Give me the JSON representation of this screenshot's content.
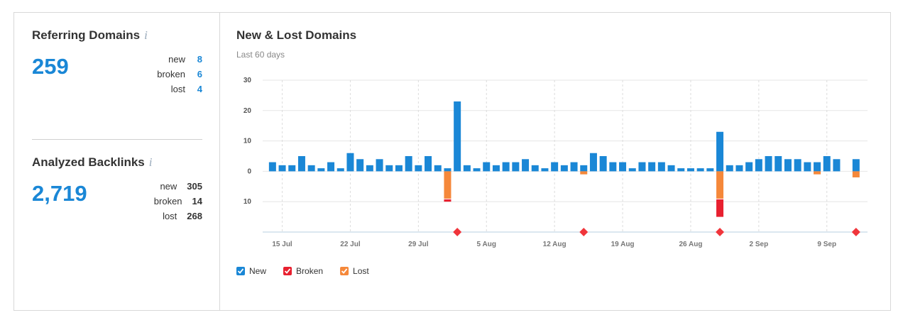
{
  "summary": {
    "referring": {
      "title": "Referring Domains",
      "total": 259,
      "rows": [
        {
          "label": "new",
          "value": 8
        },
        {
          "label": "broken",
          "value": 6
        },
        {
          "label": "lost",
          "value": 4
        }
      ]
    },
    "backlinks": {
      "title": "Analyzed Backlinks",
      "total": "2,719",
      "rows": [
        {
          "label": "new",
          "value": 305
        },
        {
          "label": "broken",
          "value": 14
        },
        {
          "label": "lost",
          "value": 268
        }
      ]
    }
  },
  "chart_data": {
    "type": "bar",
    "stacked": true,
    "title": "New & Lost Domains",
    "subtitle": "Last 60 days",
    "categories": [
      null,
      "15 Jul",
      null,
      null,
      null,
      null,
      null,
      null,
      "22 Jul",
      null,
      null,
      null,
      null,
      null,
      null,
      "29 Jul",
      null,
      null,
      null,
      null,
      null,
      null,
      "5 Aug",
      null,
      null,
      null,
      null,
      null,
      null,
      "12 Aug",
      null,
      null,
      null,
      null,
      null,
      null,
      "19 Aug",
      null,
      null,
      null,
      null,
      null,
      null,
      "26 Aug",
      null,
      null,
      null,
      null,
      null,
      null,
      "2 Sep",
      null,
      null,
      null,
      null,
      null,
      null,
      "9 Sep",
      null,
      null,
      null
    ],
    "series": [
      {
        "name": "New",
        "color": "#1a87d6",
        "values": [
          3,
          2,
          2,
          5,
          2,
          1,
          3,
          1,
          6,
          4,
          2,
          4,
          2,
          2,
          5,
          2,
          5,
          2,
          1,
          23,
          2,
          1,
          3,
          2,
          3,
          3,
          4,
          2,
          1,
          3,
          2,
          3,
          2,
          6,
          5,
          3,
          3,
          1,
          3,
          3,
          3,
          2,
          1,
          1,
          1,
          1,
          13,
          2,
          2,
          3,
          4,
          5,
          5,
          4,
          4,
          3,
          3,
          5,
          4,
          0,
          4
        ]
      },
      {
        "name": "Broken",
        "color": "#e8202f",
        "values": [
          0,
          0,
          0,
          0,
          0,
          0,
          0,
          0,
          0,
          0,
          0,
          0,
          0,
          0,
          0,
          0,
          0,
          0,
          -1,
          0,
          0,
          0,
          0,
          0,
          0,
          0,
          0,
          0,
          0,
          0,
          0,
          0,
          0,
          0,
          0,
          0,
          0,
          0,
          0,
          0,
          0,
          0,
          0,
          0,
          0,
          0,
          -6,
          0,
          0,
          0,
          0,
          0,
          0,
          0,
          0,
          0,
          0,
          0,
          0,
          0,
          0
        ]
      },
      {
        "name": "Lost",
        "color": "#f5883a",
        "values": [
          0,
          0,
          0,
          0,
          0,
          0,
          0,
          0,
          0,
          0,
          0,
          0,
          0,
          0,
          0,
          0,
          0,
          0,
          -9,
          0,
          0,
          0,
          0,
          0,
          0,
          0,
          0,
          0,
          0,
          0,
          0,
          0,
          -1,
          0,
          0,
          0,
          0,
          0,
          0,
          0,
          0,
          0,
          0,
          0,
          0,
          0,
          -9,
          0,
          0,
          0,
          0,
          0,
          0,
          0,
          0,
          0,
          -1,
          0,
          0,
          0,
          -2
        ]
      }
    ],
    "events": [
      19,
      32,
      46,
      60
    ],
    "event_color": "#f0353b",
    "ylim": [
      -20,
      30
    ],
    "yticks": [
      {
        "value": -10,
        "label": "10"
      },
      0,
      10,
      20,
      30
    ],
    "grid": true
  }
}
